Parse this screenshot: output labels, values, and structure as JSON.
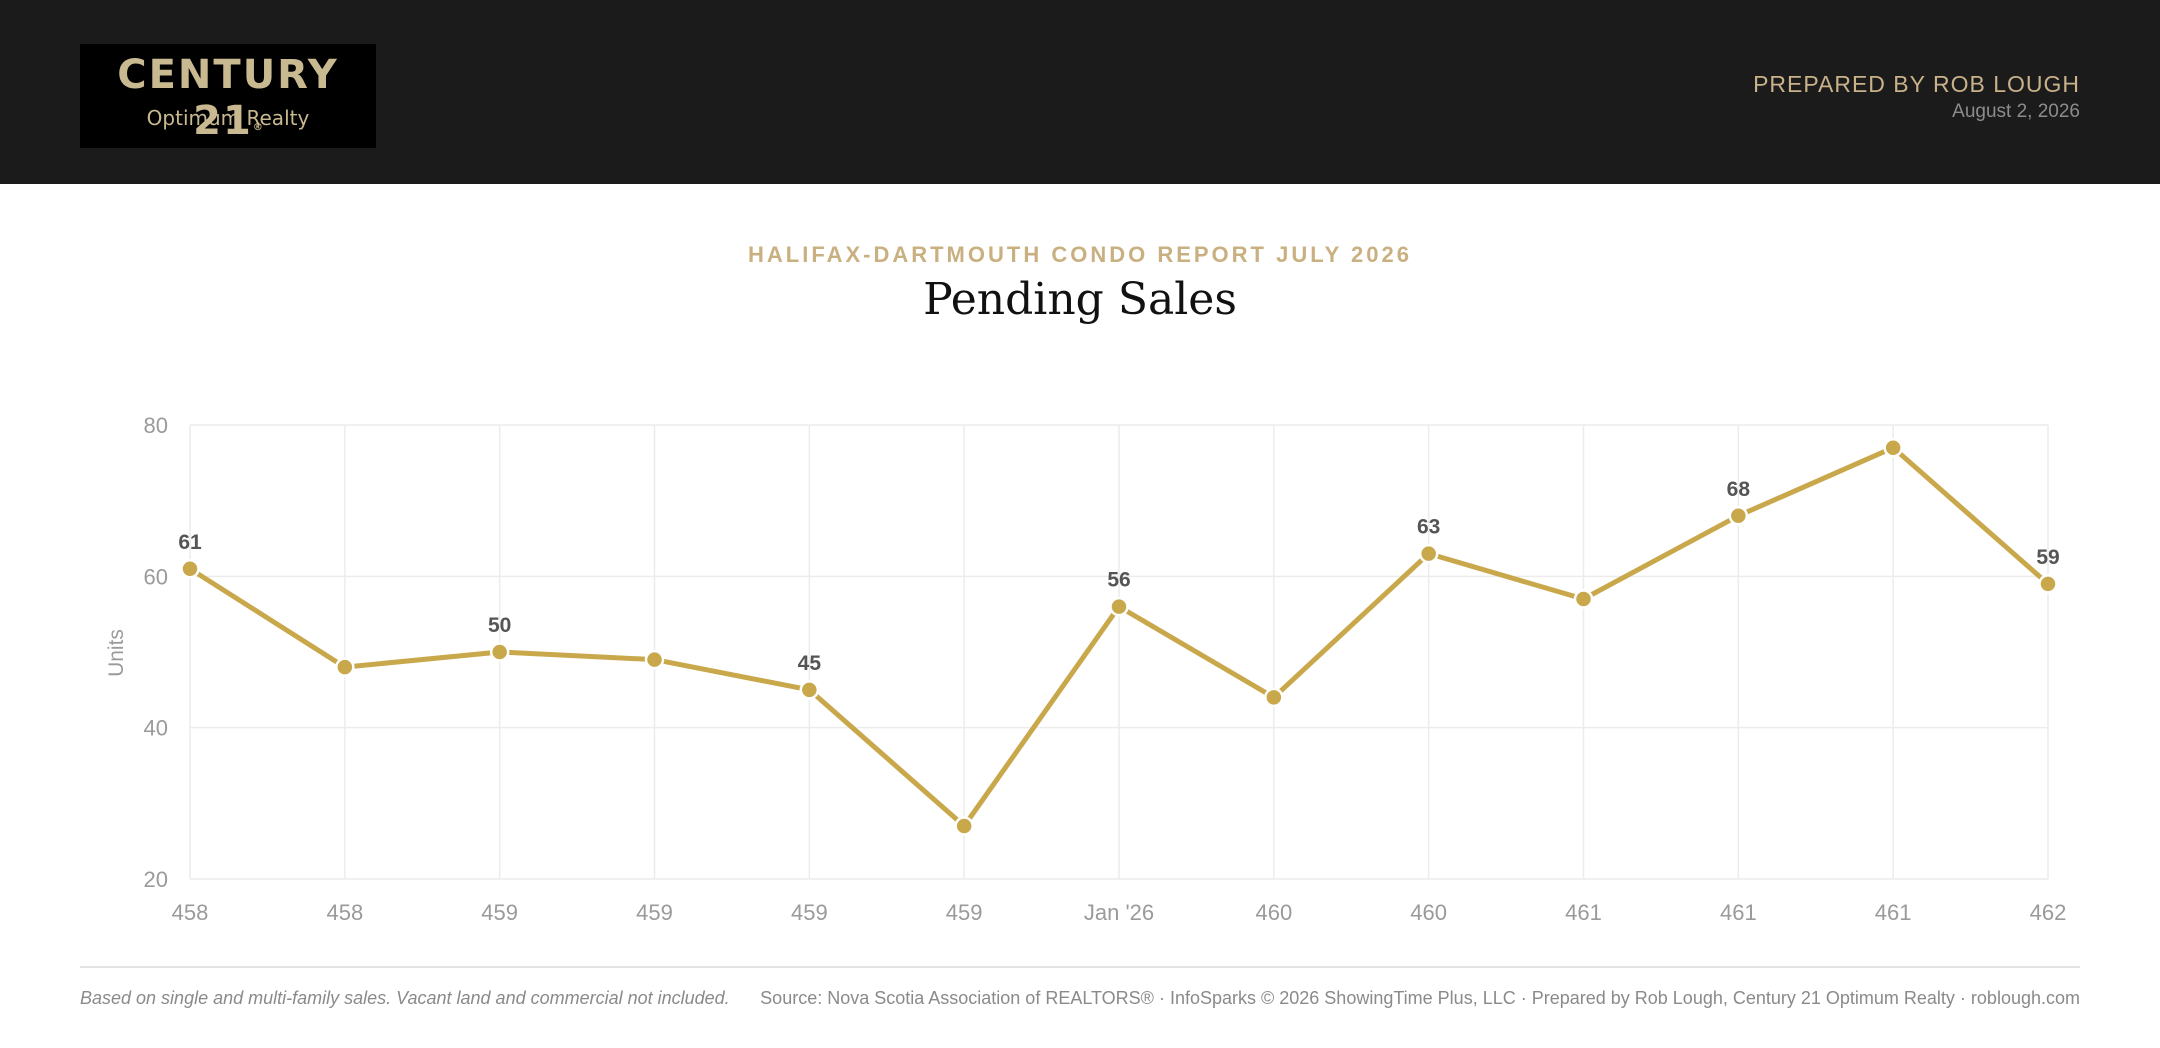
{
  "header": {
    "logo_main": "CENTURY 21",
    "logo_registered": "®",
    "logo_sub": "Optimum Realty",
    "prepared_by": "PREPARED BY ROB LOUGH",
    "date": "August 2, 2026"
  },
  "report": {
    "title": "HALIFAX-DARTMOUTH CONDO REPORT JULY 2026"
  },
  "footer": {
    "note": "Based on single and multi-family sales. Vacant land and commercial not included.",
    "source": "Source: Nova Scotia Association of REALTORS® · InfoSparks © 2026 ShowingTime Plus, LLC · Prepared by Rob Lough, Century 21 Optimum Realty · roblough.com"
  },
  "colors": {
    "line": "#c9a84c",
    "grid": "#ececec",
    "tick_text": "#9a9a9a",
    "data_label": "#555555"
  },
  "chart_data": {
    "type": "line",
    "title": "Pending Sales",
    "ylabel": "Units",
    "xlabel": "",
    "categories": [
      "458",
      "458",
      "459",
      "459",
      "459",
      "459",
      "Jan '26",
      "460",
      "460",
      "461",
      "461",
      "461",
      "462"
    ],
    "series": [
      {
        "values": [
          61,
          48,
          50,
          49,
          45,
          27,
          56,
          44,
          63,
          57,
          68,
          77,
          59
        ]
      }
    ],
    "data_labels": [
      61,
      null,
      50,
      null,
      45,
      null,
      56,
      null,
      63,
      null,
      68,
      null,
      59
    ],
    "yticks": [
      20,
      40,
      60,
      80
    ],
    "ylim": [
      20,
      80
    ],
    "grid": true,
    "legend": "none"
  }
}
